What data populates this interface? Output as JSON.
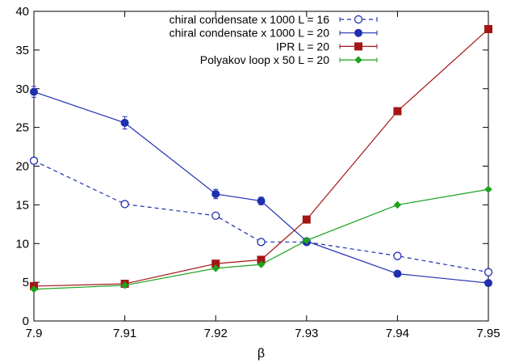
{
  "chart_data": {
    "type": "line",
    "title": "",
    "xlabel": "β",
    "ylabel": "",
    "xlim": [
      7.9,
      7.95
    ],
    "ylim": [
      0,
      40
    ],
    "xticks": [
      "7.9",
      "7.91",
      "7.92",
      "7.93",
      "7.94",
      "7.95"
    ],
    "xtick_values": [
      7.9,
      7.91,
      7.92,
      7.93,
      7.94,
      7.95
    ],
    "yticks": [
      "0",
      "5",
      "10",
      "15",
      "20",
      "25",
      "30",
      "35",
      "40"
    ],
    "ytick_values": [
      0,
      5,
      10,
      15,
      20,
      25,
      30,
      35,
      40
    ],
    "grid": false,
    "legend_position": "top-right",
    "x": [
      7.9,
      7.91,
      7.92,
      7.925,
      7.93,
      7.94,
      7.95
    ],
    "series": [
      {
        "name": "chiral condensate x 1000  L = 16",
        "values": [
          20.7,
          15.1,
          13.6,
          10.2,
          10.2,
          8.4,
          6.3
        ],
        "errors": [
          0.4,
          0.3,
          0.3,
          0.2,
          0.2,
          0.2,
          0.2
        ],
        "color": "#1f2fb0",
        "marker": "open-circle",
        "dash": true
      },
      {
        "name": "chiral condensate x 1000  L = 20",
        "values": [
          29.6,
          25.6,
          16.4,
          15.5,
          10.3,
          6.1,
          4.9
        ],
        "errors": [
          0.7,
          0.8,
          0.6,
          0.5,
          0.3,
          0.2,
          0.2
        ],
        "color": "#1f2fb0",
        "marker": "filled-circle",
        "dash": false
      },
      {
        "name": "IPR  L = 20",
        "values": [
          4.5,
          4.8,
          7.4,
          7.9,
          13.1,
          27.1,
          37.7
        ],
        "errors": [
          0,
          0,
          0,
          0,
          0,
          0,
          0
        ],
        "color": "#a31515",
        "marker": "filled-square",
        "dash": false
      },
      {
        "name": "Polyakov loop x 50  L = 20",
        "values": [
          4.1,
          4.6,
          6.8,
          7.3,
          10.4,
          15.0,
          17.0
        ],
        "errors": [
          0,
          0,
          0,
          0,
          0,
          0,
          0
        ],
        "color": "#1ea31e",
        "marker": "filled-diamond",
        "dash": false
      }
    ]
  }
}
